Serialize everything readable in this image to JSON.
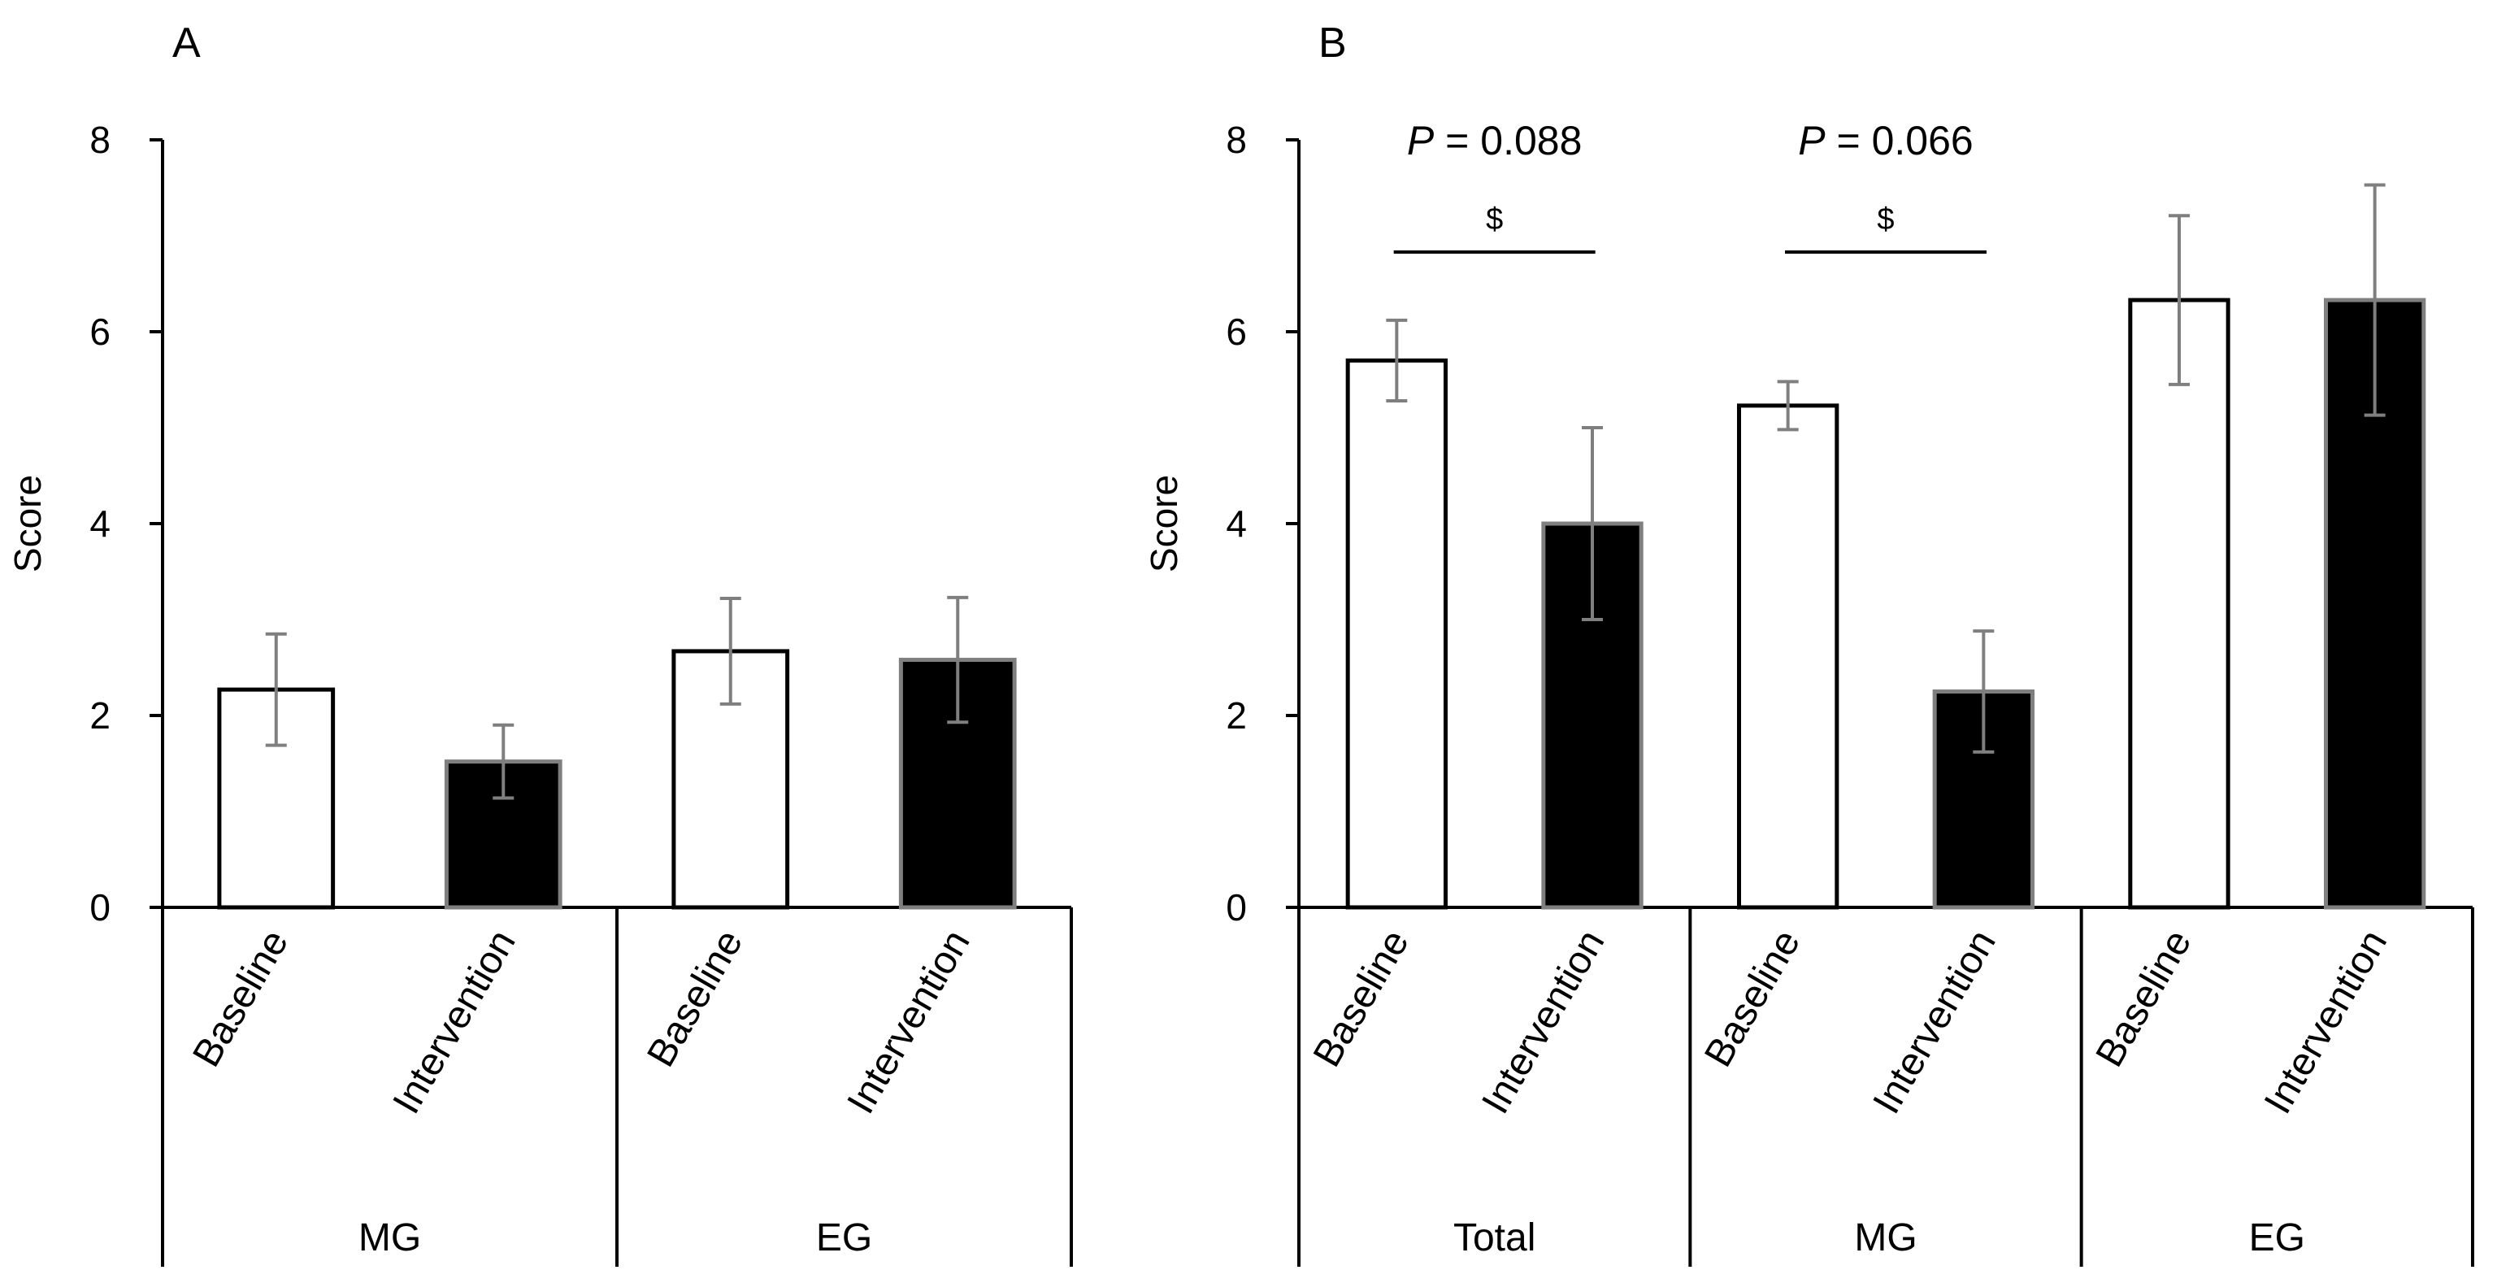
{
  "chart_data": [
    {
      "panel": "A",
      "type": "bar",
      "ylabel": "Score",
      "ylim": [
        0,
        8
      ],
      "yticks": [
        0,
        2,
        4,
        6,
        8
      ],
      "groups": [
        "MG",
        "EG"
      ],
      "bars": [
        {
          "group": "MG",
          "label": "Baseline",
          "value": 2.27,
          "error": 0.58,
          "fill": "white"
        },
        {
          "group": "MG",
          "label": "Intervention",
          "value": 1.52,
          "error": 0.38,
          "fill": "black"
        },
        {
          "group": "EG",
          "label": "Baseline",
          "value": 2.67,
          "error": 0.55,
          "fill": "white"
        },
        {
          "group": "EG",
          "label": "Intervention",
          "value": 2.58,
          "error": 0.65,
          "fill": "black"
        }
      ],
      "annotations": []
    },
    {
      "panel": "B",
      "type": "bar",
      "ylabel": "Score",
      "ylim": [
        0,
        8
      ],
      "yticks": [
        0,
        2,
        4,
        6,
        8
      ],
      "groups": [
        "Total",
        "MG",
        "EG"
      ],
      "bars": [
        {
          "group": "Total",
          "label": "Baseline",
          "value": 5.7,
          "error": 0.42,
          "fill": "white"
        },
        {
          "group": "Total",
          "label": "Intervention",
          "value": 4.0,
          "error": 1.0,
          "fill": "black"
        },
        {
          "group": "MG",
          "label": "Baseline",
          "value": 5.23,
          "error": 0.25,
          "fill": "white"
        },
        {
          "group": "MG",
          "label": "Intervention",
          "value": 2.25,
          "error": 0.63,
          "fill": "black"
        },
        {
          "group": "EG",
          "label": "Baseline",
          "value": 6.33,
          "error": 0.88,
          "fill": "white"
        },
        {
          "group": "EG",
          "label": "Intervention",
          "value": 6.33,
          "error": 1.2,
          "fill": "black"
        }
      ],
      "annotations": [
        {
          "group": "Total",
          "p_prefix": "P",
          "p_text": " = 0.088",
          "symbol": "$"
        },
        {
          "group": "MG",
          "p_prefix": "P",
          "p_text": " = 0.066",
          "symbol": "$"
        }
      ]
    }
  ],
  "colors": {
    "bar_fill_black": "#000000",
    "bar_fill_white": "#ffffff",
    "intervention_border": "#7f7f7f",
    "error_bar": "#7f7f7f",
    "axis": "#000000"
  }
}
